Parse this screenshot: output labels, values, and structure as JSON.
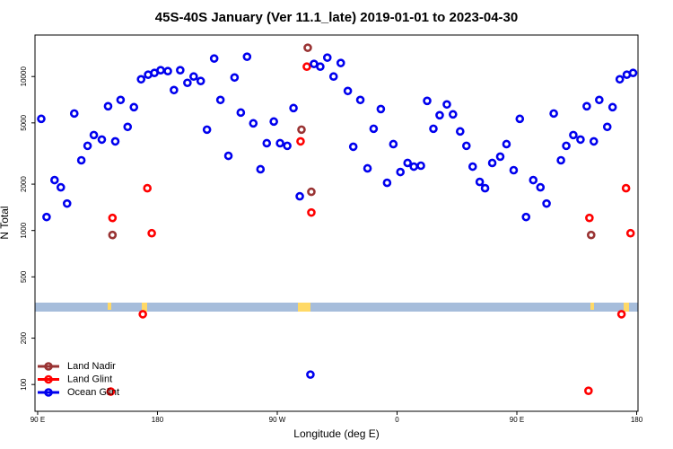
{
  "chart_data": {
    "type": "scatter",
    "title": "45S-40S January (Ver 11.1_late)   2019-01-01 to 2023-04-30",
    "x_label": "Longitude (deg E)",
    "y_label": "N Total",
    "log_y": true,
    "legend": "bottom-left",
    "xlim": [
      88,
      541
    ],
    "ylim": [
      67,
      18600
    ],
    "xticks": [
      {
        "value": 90,
        "label": "90 E"
      },
      180,
      {
        "value": 270,
        "label": "90 W"
      },
      {
        "value": 360,
        "label": "0"
      },
      {
        "value": 450,
        "label": "90 E"
      },
      {
        "value": 540,
        "label": "180"
      }
    ],
    "yticks": [
      100,
      200,
      500,
      1000,
      2000,
      5000,
      10000
    ],
    "series": [
      {
        "name": "Land Nadir",
        "color": "#993333",
        "x": [
          146.2,
          292.9,
          295.6,
          288.2,
          505.8
        ],
        "values": [
          935,
          15380,
          1784,
          4519,
          935
        ]
      },
      {
        "name": "Land Glint",
        "color": "#ff0000",
        "x": [
          146.2,
          169.0,
          172.4,
          175.7,
          144.9,
          287.5,
          292.2,
          295.6,
          504.5,
          528.6,
          532.0,
          535.4,
          503.8
        ],
        "values": [
          1207,
          286,
          1883,
          960,
          90,
          3793,
          11590,
          1309,
          1207,
          286,
          1883,
          960,
          91
        ]
      },
      {
        "name": "Ocean Glint",
        "color": "#0000ee",
        "x": [
          92.7,
          96.7,
          102.7,
          107.4,
          112.1,
          117.5,
          122.8,
          127.5,
          132.2,
          138.2,
          142.9,
          148.3,
          152.3,
          157.6,
          162.3,
          167.7,
          173.0,
          177.7,
          182.4,
          187.8,
          192.4,
          197.1,
          202.5,
          207.2,
          212.5,
          217.2,
          222.6,
          227.3,
          233.3,
          237.9,
          242.6,
          247.3,
          252.0,
          257.4,
          262.1,
          267.4,
          272.1,
          277.5,
          282.2,
          286.9,
          294.9,
          297.6,
          302.3,
          307.6,
          312.3,
          317.7,
          323.0,
          327.1,
          332.4,
          337.8,
          342.4,
          347.8,
          352.5,
          357.2,
          362.5,
          367.9,
          372.6,
          377.9,
          382.6,
          387.3,
          392.0,
          397.4,
          402.0,
          407.4,
          412.1,
          416.8,
          422.1,
          426.1,
          431.5,
          437.5,
          442.2,
          447.6,
          452.2,
          456.9,
          462.3,
          467.7,
          472.3,
          477.7,
          483.1,
          487.1,
          492.4,
          497.8,
          502.5,
          507.8,
          511.9,
          517.9,
          521.9,
          527.3,
          532.6,
          537.3
        ],
        "values": [
          5310,
          1224,
          2126,
          1908,
          1497,
          5754,
          2858,
          3548,
          4169,
          3896,
          6412,
          3793,
          7047,
          4710,
          6324,
          9597,
          10280,
          10550,
          10990,
          10840,
          8170,
          10990,
          9100,
          10000,
          9350,
          4519,
          13090,
          7047,
          3055,
          9860,
          5834,
          13450,
          4966,
          2500,
          3690,
          5100,
          3690,
          3548,
          6240,
          1668,
          116,
          12080,
          11590,
          13270,
          10000,
          12240,
          8060,
          3500,
          7047,
          2533,
          4580,
          6150,
          2041,
          3640,
          2399,
          2746,
          2600,
          2636,
          6950,
          4580,
          5606,
          6590,
          5680,
          4400,
          3548,
          2600,
          2069,
          1883,
          2746,
          3018,
          3640,
          2465,
          5310,
          1224,
          2126,
          1908,
          1497,
          5754,
          2858,
          3548,
          4169,
          3896,
          6412,
          3793,
          7047,
          4710,
          6324,
          9597,
          10280,
          10550
        ]
      }
    ]
  }
}
